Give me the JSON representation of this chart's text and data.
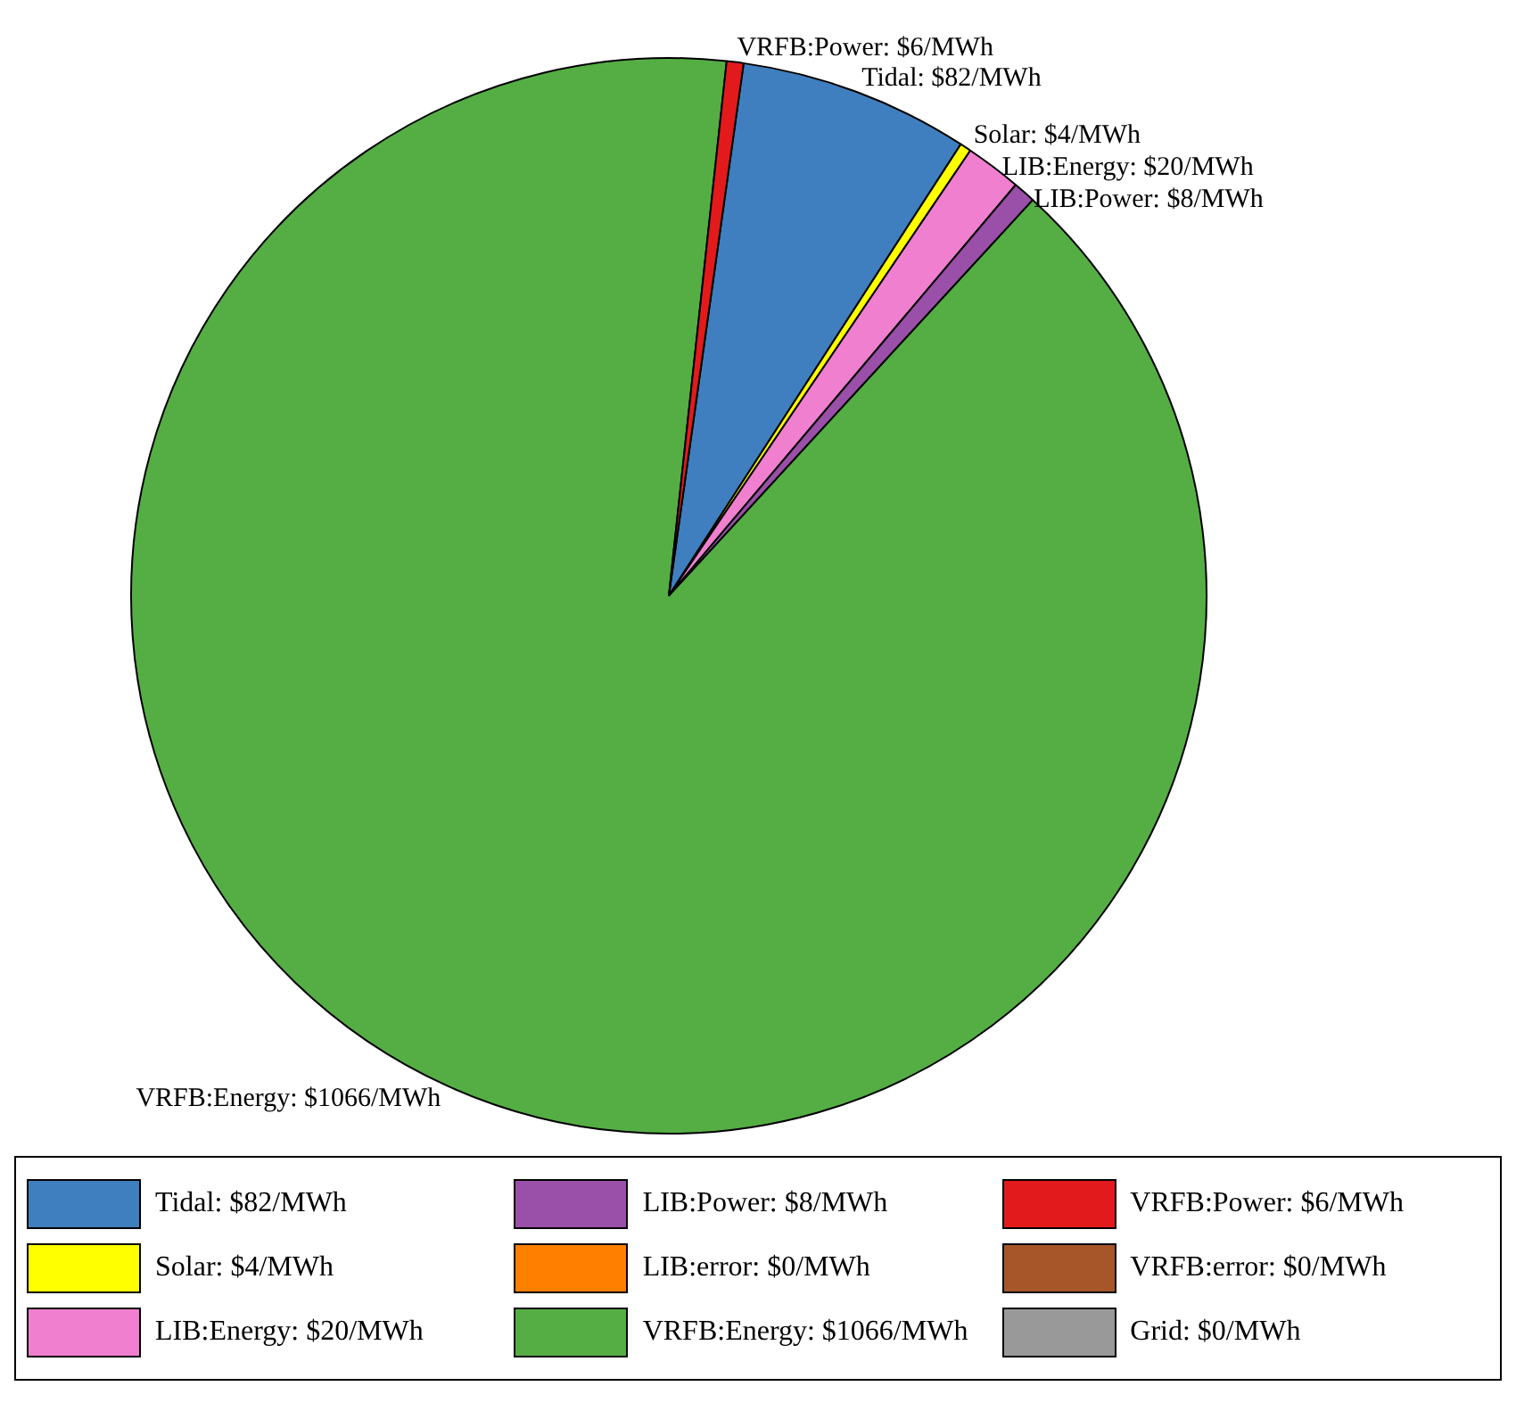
{
  "chart_data": {
    "type": "pie",
    "categories": [
      "Tidal: $82/MWh",
      "Solar: $4/MWh",
      "LIB:Energy: $20/MWh",
      "LIB:Power: $8/MWh",
      "LIB:error: $0/MWh",
      "VRFB:Energy: $1066/MWh",
      "VRFB:Power: $6/MWh",
      "VRFB:error: $0/MWh",
      "Grid: $0/MWh"
    ],
    "values": [
      82,
      4,
      20,
      8,
      0,
      1066,
      6,
      0,
      0
    ],
    "colors": [
      "#3f7fbf",
      "#ffff00",
      "#f07fcf",
      "#9a4fa8",
      "#ff7f00",
      "#55ae44",
      "#e31a1c",
      "#a65628",
      "#999999"
    ],
    "legend": "bottom"
  }
}
